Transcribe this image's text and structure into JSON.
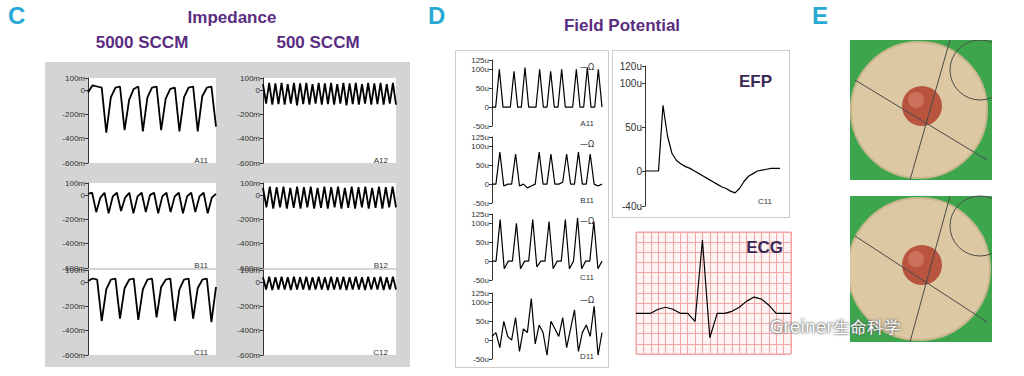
{
  "figure": {
    "panels": [
      {
        "label": "C",
        "title": "Impedance",
        "columns": [
          "5000 SCCM",
          "500 SCCM"
        ]
      },
      {
        "label": "D",
        "title": "Field Potential"
      },
      {
        "label": "E"
      }
    ],
    "watermark": "Greiner生命科学"
  },
  "chart_data": [
    {
      "type": "line",
      "title": "A11",
      "color": "#000000",
      "grid": false,
      "tick_labels": "y",
      "ylim": [
        -600,
        100
      ],
      "yticks": [
        {
          "value": -600,
          "label": "-600m"
        },
        {
          "value": -400,
          "label": "-400m"
        },
        {
          "value": -200,
          "label": "-200m"
        },
        0,
        {
          "value": 100,
          "label": "100m"
        }
      ],
      "values": [
        -20,
        40,
        30,
        20,
        -350,
        -60,
        20,
        30,
        -330,
        -80,
        10,
        30,
        -340,
        -60,
        20,
        30,
        -330,
        -70,
        10,
        20,
        -340,
        -60,
        20,
        30,
        -340,
        -50,
        20,
        30,
        -300
      ]
    },
    {
      "type": "line",
      "title": "B11",
      "color": "#000000",
      "grid": false,
      "tick_labels": "y",
      "ylim": [
        -600,
        100
      ],
      "yticks": [
        {
          "value": -600,
          "label": "-600m"
        },
        {
          "value": -400,
          "label": "-400m"
        },
        {
          "value": -200,
          "label": "-200m"
        },
        0,
        {
          "value": 100,
          "label": "100m"
        }
      ],
      "values": [
        10,
        20,
        -140,
        -20,
        20,
        -150,
        -10,
        20,
        -130,
        -20,
        20,
        -150,
        -10,
        20,
        -140,
        0,
        20,
        -150,
        -10,
        20,
        -140,
        -10,
        20,
        -150,
        -10,
        20,
        -140,
        -10,
        20,
        -150,
        -20,
        10
      ]
    },
    {
      "type": "line",
      "title": "C11",
      "color": "#000000",
      "grid": false,
      "tick_labels": "y",
      "ylim": [
        -600,
        100
      ],
      "yticks": [
        {
          "value": -600,
          "label": "-600m"
        },
        {
          "value": -400,
          "label": "-400m"
        },
        {
          "value": -200,
          "label": "-200m"
        },
        0,
        {
          "value": 100,
          "label": "100m"
        }
      ],
      "values": [
        10,
        30,
        20,
        -320,
        -60,
        20,
        30,
        -300,
        -50,
        20,
        30,
        -310,
        -60,
        20,
        30,
        -290,
        -40,
        20,
        30,
        -320,
        -60,
        20,
        30,
        -300,
        -50,
        20,
        30,
        -330,
        -40
      ]
    },
    {
      "type": "line",
      "title": "A12",
      "color": "#000000",
      "grid": false,
      "tick_labels": "y",
      "ylim": [
        -600,
        100
      ],
      "yticks": [
        {
          "value": -600,
          "label": "-600m"
        },
        {
          "value": -400,
          "label": "-400m"
        },
        {
          "value": -200,
          "label": "-200m"
        },
        0,
        {
          "value": 100,
          "label": "100m"
        }
      ],
      "values": [
        50,
        -110,
        60,
        -120,
        55,
        -115,
        60,
        -120,
        50,
        -110,
        60,
        -125,
        55,
        -115,
        60,
        -120,
        50,
        -110,
        60,
        -120,
        55,
        -115,
        60,
        -120,
        50,
        -110,
        60,
        -125,
        55,
        -115,
        60,
        -120,
        50,
        -110,
        60,
        -120,
        55,
        -115,
        60,
        -120,
        50,
        -110,
        60,
        -120
      ]
    },
    {
      "type": "line",
      "title": "B12",
      "color": "#000000",
      "grid": false,
      "tick_labels": "y",
      "ylim": [
        -600,
        100
      ],
      "yticks": [
        {
          "value": -600,
          "label": "-600m"
        },
        {
          "value": -400,
          "label": "-400m"
        },
        {
          "value": -200,
          "label": "-200m"
        },
        0,
        {
          "value": 100,
          "label": "100m"
        }
      ],
      "values": [
        60,
        -100,
        70,
        -110,
        65,
        -100,
        70,
        -110,
        60,
        -105,
        70,
        -110,
        65,
        -100,
        70,
        -110,
        60,
        -105,
        70,
        -110,
        65,
        -100,
        70,
        -110,
        60,
        -105,
        70,
        -110,
        65,
        -100,
        70,
        -110,
        60,
        -105,
        70,
        -110,
        65,
        -100,
        70,
        -100
      ]
    },
    {
      "type": "line",
      "title": "C12",
      "color": "#000000",
      "grid": false,
      "tick_labels": "y",
      "ylim": [
        -600,
        100
      ],
      "yticks": [
        {
          "value": -600,
          "label": "-600m"
        },
        {
          "value": -400,
          "label": "-400m"
        },
        {
          "value": -200,
          "label": "-200m"
        },
        0,
        {
          "value": 100,
          "label": "100m"
        }
      ],
      "values": [
        40,
        -60,
        45,
        -65,
        40,
        -60,
        45,
        -60,
        40,
        -65,
        45,
        -60,
        40,
        -60,
        45,
        -65,
        40,
        -60,
        45,
        -60,
        40,
        -65,
        45,
        -60,
        40,
        -60,
        45,
        -65,
        40,
        -60,
        45,
        -60,
        40,
        -65,
        45,
        -60,
        40,
        -60,
        45,
        -65,
        40,
        -60,
        45,
        -60
      ]
    },
    {
      "type": "line",
      "title": "A11",
      "annotation": "—Ω",
      "color": "#000000",
      "grid": false,
      "tick_labels": "y",
      "ylim": [
        -50,
        125
      ],
      "yticks": [
        {
          "value": -50,
          "label": "-50u"
        },
        0,
        {
          "value": 50,
          "label": "50u"
        },
        {
          "value": 100,
          "label": "100u"
        },
        {
          "value": 125,
          "label": "125u"
        }
      ],
      "values": [
        0,
        0,
        100,
        0,
        0,
        0,
        95,
        0,
        0,
        105,
        0,
        0,
        0,
        100,
        0,
        0,
        95,
        0,
        0,
        100,
        0,
        0,
        0,
        100,
        0,
        0,
        105,
        0,
        0,
        100,
        0
      ]
    },
    {
      "type": "line",
      "title": "B11",
      "annotation": "—Ω",
      "color": "#000000",
      "grid": false,
      "tick_labels": "y",
      "ylim": [
        -50,
        125
      ],
      "yticks": [
        {
          "value": -50,
          "label": "-50u"
        },
        0,
        {
          "value": 50,
          "label": "50u"
        },
        {
          "value": 100,
          "label": "100u"
        },
        {
          "value": 125,
          "label": "125u"
        }
      ],
      "values": [
        0,
        0,
        85,
        -5,
        0,
        0,
        80,
        -5,
        0,
        -10,
        -5,
        0,
        85,
        0,
        0,
        80,
        0,
        0,
        5,
        80,
        0,
        0,
        85,
        0,
        0,
        80,
        0,
        -5,
        0
      ]
    },
    {
      "type": "line",
      "title": "C11",
      "annotation": "—Ω",
      "color": "#000000",
      "grid": false,
      "tick_labels": "y",
      "ylim": [
        -50,
        125
      ],
      "yticks": [
        {
          "value": -50,
          "label": "-50u"
        },
        0,
        {
          "value": 50,
          "label": "50u"
        },
        {
          "value": 100,
          "label": "100u"
        },
        {
          "value": 125,
          "label": "125u"
        }
      ],
      "values": [
        0,
        0,
        110,
        -20,
        0,
        0,
        100,
        -20,
        0,
        0,
        110,
        -15,
        0,
        0,
        105,
        -20,
        0,
        0,
        110,
        -20,
        0,
        115,
        -20,
        0,
        0,
        105,
        -20,
        0
      ]
    },
    {
      "type": "line",
      "title": "D11",
      "annotation": "—Ω",
      "color": "#000000",
      "grid": false,
      "tick_labels": "y",
      "ylim": [
        -50,
        125
      ],
      "yticks": [
        {
          "value": -50,
          "label": "-50u"
        },
        0,
        {
          "value": 50,
          "label": "50u"
        },
        {
          "value": 100,
          "label": "100u"
        },
        {
          "value": 125,
          "label": "125u"
        }
      ],
      "values": [
        10,
        20,
        -20,
        50,
        10,
        0,
        60,
        -30,
        30,
        20,
        110,
        -10,
        40,
        20,
        -40,
        50,
        30,
        10,
        60,
        -20,
        30,
        80,
        -30,
        20,
        40,
        10,
        90,
        -40,
        20
      ]
    },
    {
      "type": "line",
      "title": "EFP",
      "label": "C11",
      "color": "#000000",
      "grid": false,
      "tick_labels": "y",
      "ylim": [
        -40,
        120
      ],
      "yticks": [
        {
          "value": -40,
          "label": "-40u"
        },
        0,
        {
          "value": 50,
          "label": "50u"
        },
        {
          "value": 100,
          "label": "100u"
        },
        {
          "value": 120,
          "label": "120u"
        }
      ],
      "values": [
        0,
        0,
        0,
        0,
        75,
        40,
        20,
        12,
        8,
        5,
        3,
        0,
        -3,
        -6,
        -9,
        -12,
        -15,
        -18,
        -20,
        -23,
        -25,
        -20,
        -12,
        -6,
        -3,
        0,
        1,
        2,
        3,
        3,
        3
      ]
    },
    {
      "type": "line",
      "title": "ECG",
      "color": "#000000",
      "grid": true,
      "tick_labels": false,
      "ylim": [
        -1,
        2
      ],
      "yticks": [
        -1,
        -0.75,
        -0.5,
        -0.25,
        0,
        0.25,
        0.5,
        0.75,
        1,
        1.25,
        1.5,
        1.75,
        2
      ],
      "values": [
        0,
        0,
        0,
        0.1,
        0.15,
        0.1,
        0,
        0,
        -0.2,
        1.8,
        -0.6,
        0,
        0,
        0.05,
        0.15,
        0.3,
        0.4,
        0.35,
        0.2,
        0,
        0,
        0
      ]
    }
  ]
}
